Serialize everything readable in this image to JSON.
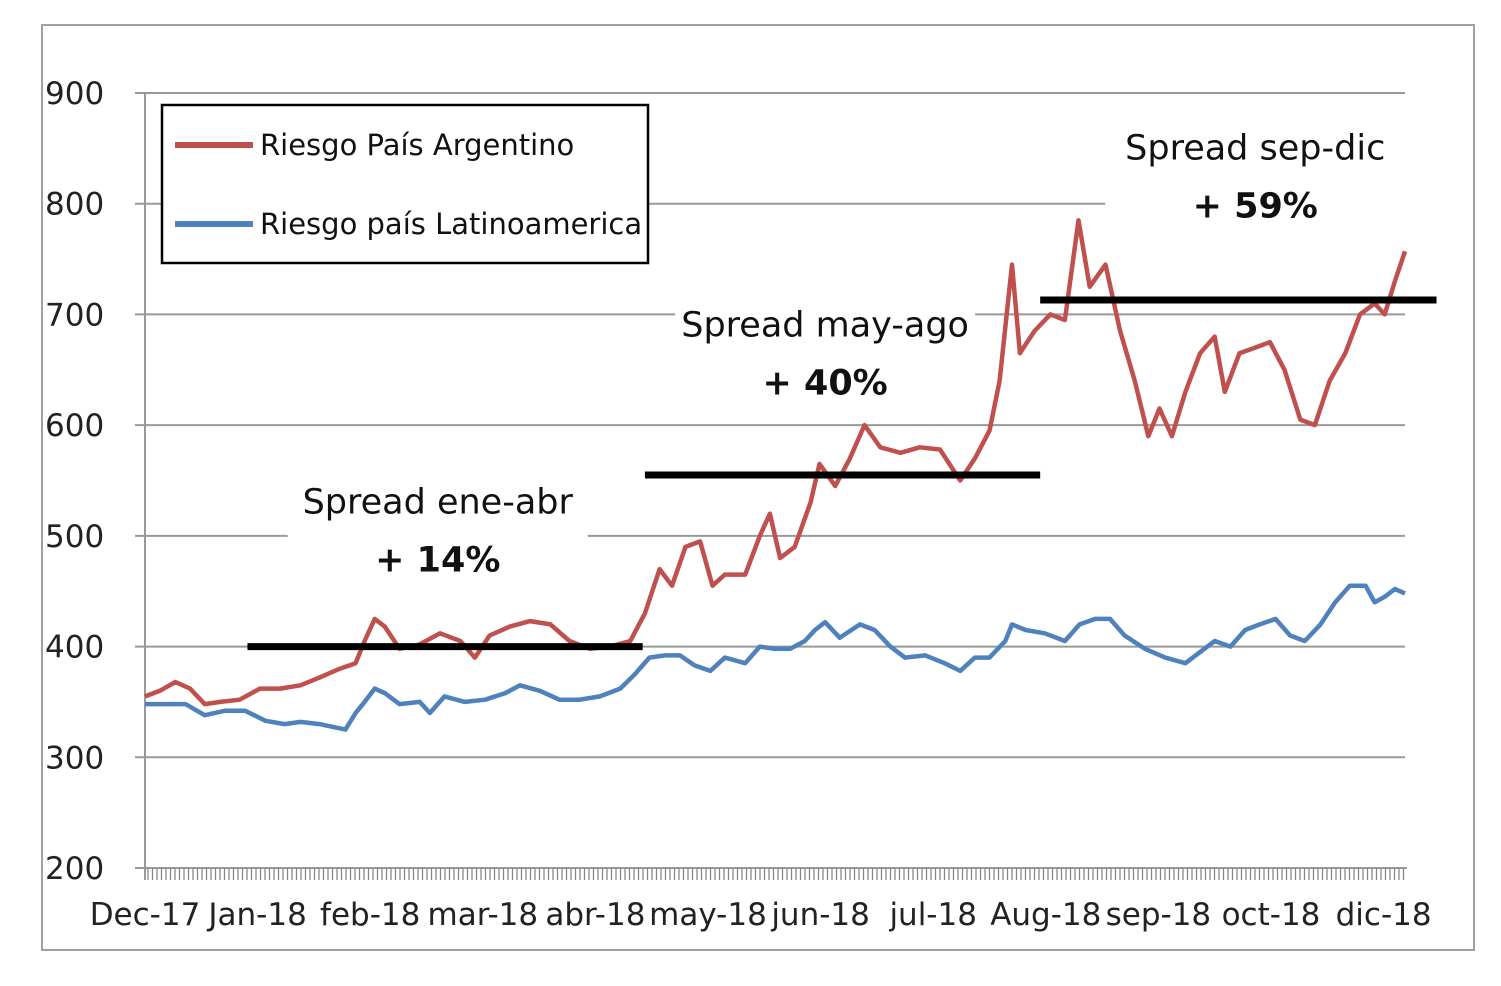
{
  "chart_data": {
    "type": "line",
    "title": "",
    "xlabel": "",
    "ylabel": "",
    "x_unit": "months since Dec-17",
    "xlim": [
      0,
      11.2
    ],
    "ylim": [
      200,
      900
    ],
    "yticks": [
      200,
      300,
      400,
      500,
      600,
      700,
      800,
      900
    ],
    "xtick_labels": [
      {
        "x": 0,
        "label": "Dec-17"
      },
      {
        "x": 1,
        "label": "Jan-18"
      },
      {
        "x": 2,
        "label": "feb-18"
      },
      {
        "x": 3,
        "label": "mar-18"
      },
      {
        "x": 4,
        "label": "abr-18"
      },
      {
        "x": 5,
        "label": "may-18"
      },
      {
        "x": 6,
        "label": "jun-18"
      },
      {
        "x": 7,
        "label": "jul-18"
      },
      {
        "x": 8,
        "label": "Aug-18"
      },
      {
        "x": 9,
        "label": "sep-18"
      },
      {
        "x": 10,
        "label": "oct-18"
      },
      {
        "x": 11,
        "label": "dic-18"
      }
    ],
    "grid": true,
    "legend_position": "top-left",
    "series": [
      {
        "name": "Riesgo País Argentino",
        "color": "#c0504d",
        "x": [
          0,
          0.13,
          0.27,
          0.4,
          0.53,
          0.67,
          0.84,
          1.02,
          1.2,
          1.38,
          1.55,
          1.73,
          1.87,
          1.95,
          2.04,
          2.13,
          2.26,
          2.44,
          2.62,
          2.8,
          2.93,
          3.06,
          3.24,
          3.42,
          3.6,
          3.77,
          3.95,
          4.13,
          4.31,
          4.44,
          4.57,
          4.68,
          4.8,
          4.93,
          5.04,
          5.15,
          5.33,
          5.46,
          5.55,
          5.64,
          5.77,
          5.91,
          5.99,
          6.13,
          6.26,
          6.39,
          6.53,
          6.71,
          6.88,
          7.06,
          7.24,
          7.37,
          7.5,
          7.59,
          7.7,
          7.77,
          7.9,
          8.04,
          8.17,
          8.29,
          8.39,
          8.53,
          8.66,
          8.79,
          8.91,
          9.01,
          9.12,
          9.24,
          9.37,
          9.5,
          9.59,
          9.72,
          9.86,
          9.99,
          10.12,
          10.26,
          10.39,
          10.52,
          10.66,
          10.79,
          10.92,
          11.01,
          11.1,
          11.19
        ],
        "y": [
          355,
          360,
          368,
          362,
          348,
          350,
          352,
          362,
          362,
          365,
          372,
          380,
          385,
          405,
          425,
          418,
          398,
          402,
          412,
          405,
          390,
          410,
          418,
          423,
          420,
          405,
          398,
          400,
          405,
          430,
          470,
          455,
          490,
          495,
          455,
          465,
          465,
          500,
          520,
          480,
          490,
          530,
          565,
          545,
          570,
          600,
          580,
          575,
          580,
          578,
          550,
          570,
          595,
          640,
          745,
          665,
          685,
          700,
          695,
          785,
          725,
          745,
          685,
          640,
          590,
          615,
          590,
          630,
          665,
          680,
          630,
          665,
          670,
          675,
          650,
          605,
          600,
          640,
          665,
          700,
          710,
          700,
          730,
          757
        ]
      },
      {
        "name": "Riesgo país Latinoamerica",
        "color": "#4f81bd",
        "x": [
          0,
          0.18,
          0.36,
          0.53,
          0.71,
          0.89,
          1.07,
          1.24,
          1.38,
          1.55,
          1.78,
          1.87,
          1.95,
          2.04,
          2.13,
          2.26,
          2.44,
          2.53,
          2.66,
          2.84,
          3.02,
          3.2,
          3.33,
          3.51,
          3.68,
          3.86,
          4.04,
          4.22,
          4.35,
          4.48,
          4.62,
          4.75,
          4.88,
          5.02,
          5.15,
          5.33,
          5.46,
          5.59,
          5.73,
          5.86,
          5.95,
          6.04,
          6.17,
          6.35,
          6.48,
          6.62,
          6.75,
          6.93,
          7.1,
          7.24,
          7.37,
          7.5,
          7.64,
          7.7,
          7.82,
          7.99,
          8.17,
          8.3,
          8.44,
          8.57,
          8.7,
          8.88,
          9.06,
          9.24,
          9.37,
          9.5,
          9.64,
          9.77,
          9.9,
          10.04,
          10.17,
          10.3,
          10.44,
          10.57,
          10.7,
          10.84,
          10.92,
          11.01,
          11.1,
          11.19
        ],
        "y": [
          348,
          348,
          348,
          338,
          342,
          342,
          333,
          330,
          332,
          330,
          325,
          340,
          350,
          362,
          358,
          348,
          350,
          340,
          355,
          350,
          352,
          358,
          365,
          360,
          352,
          352,
          355,
          362,
          375,
          390,
          392,
          392,
          383,
          378,
          390,
          385,
          400,
          398,
          398,
          405,
          415,
          422,
          408,
          420,
          415,
          400,
          390,
          392,
          385,
          378,
          390,
          390,
          405,
          420,
          415,
          412,
          405,
          420,
          425,
          425,
          410,
          398,
          390,
          385,
          395,
          405,
          400,
          415,
          420,
          425,
          410,
          405,
          420,
          440,
          455,
          455,
          440,
          445,
          452,
          448
        ]
      }
    ],
    "spread_bars": [
      {
        "x": [
          0.91,
          4.42
        ],
        "y": 400
      },
      {
        "x": [
          4.44,
          7.95
        ],
        "y": 555
      },
      {
        "x": [
          7.95,
          11.47
        ],
        "y": 713
      }
    ],
    "annotations": [
      {
        "title": "Spread ene-abr",
        "value": "+ 14%",
        "x": 2.6,
        "y": 520
      },
      {
        "title": "Spread may-ago",
        "value": "+ 40%",
        "x": 6.04,
        "y": 680
      },
      {
        "title": "Spread sep-dic",
        "value": "+ 59%",
        "x": 9.86,
        "y": 840
      }
    ]
  }
}
